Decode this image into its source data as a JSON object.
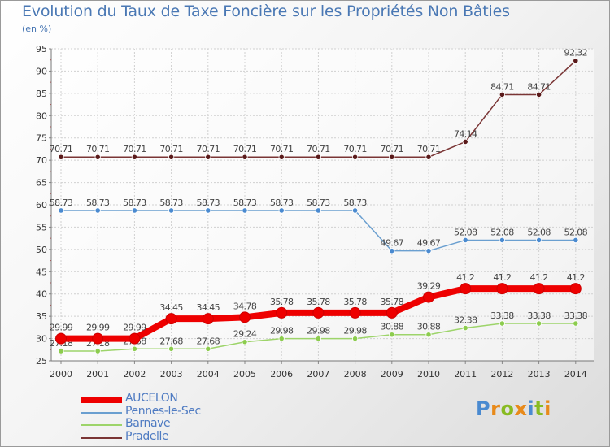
{
  "header": {
    "title": "Evolution du Taux de Taxe Foncière sur les Propriétés Non Bâties",
    "unit": "(en %)"
  },
  "chart_data": {
    "type": "line",
    "title": "Evolution du Taux de Taxe Foncière sur les Propriétés Non Bâties",
    "ylabel": "(en %)",
    "xlabel": "",
    "ylim": [
      25,
      95
    ],
    "yticks": [
      25,
      30,
      35,
      40,
      45,
      50,
      55,
      60,
      65,
      70,
      75,
      80,
      85,
      90,
      95
    ],
    "grid": true,
    "legend_position": "bottom-left",
    "categories": [
      "2000",
      "2001",
      "2002",
      "2003",
      "2004",
      "2005",
      "2006",
      "2007",
      "2008",
      "2009",
      "2010",
      "2011",
      "2012",
      "2013",
      "2014"
    ],
    "series": [
      {
        "name": "Barnave",
        "color": "#9dd46a",
        "marker_color": "#8ccc4e",
        "values": [
          27.18,
          27.18,
          27.68,
          27.68,
          27.68,
          29.24,
          29.98,
          29.98,
          29.98,
          30.88,
          30.88,
          32.38,
          33.38,
          33.38,
          33.38
        ],
        "labels": [
          "27.18",
          "27.18",
          "27.68",
          "27.68",
          "27.68",
          "29.24",
          "29.98",
          "29.98",
          "29.98",
          "30.88",
          "30.88",
          "32.38",
          "33.38",
          "33.38",
          "33.38"
        ]
      },
      {
        "name": "Pennes-le-Sec",
        "color": "#6a9fd0",
        "marker_color": "#4a8ad0",
        "values": [
          58.73,
          58.73,
          58.73,
          58.73,
          58.73,
          58.73,
          58.73,
          58.73,
          58.73,
          49.67,
          49.67,
          52.08,
          52.08,
          52.08,
          52.08
        ],
        "labels": [
          "58.73",
          "58.73",
          "58.73",
          "58.73",
          "58.73",
          "58.73",
          "58.73",
          "58.73",
          "58.73",
          "49.67",
          "49.67",
          "52.08",
          "52.08",
          "52.08",
          "52.08"
        ]
      },
      {
        "name": "Pradelle",
        "color": "#7a3535",
        "marker_color": "#5a1a1a",
        "values": [
          70.71,
          70.71,
          70.71,
          70.71,
          70.71,
          70.71,
          70.71,
          70.71,
          70.71,
          70.71,
          70.71,
          74.14,
          84.71,
          84.71,
          92.32
        ],
        "labels": [
          "70.71",
          "70.71",
          "70.71",
          "70.71",
          "70.71",
          "70.71",
          "70.71",
          "70.71",
          "70.71",
          "70.71",
          "70.71",
          "74.14",
          "84.71",
          "84.71",
          "92.32"
        ]
      },
      {
        "name": "AUCELON",
        "color": "#ee0000",
        "marker_color": "#ee0000",
        "values": [
          29.99,
          29.99,
          29.99,
          34.45,
          34.45,
          34.78,
          35.78,
          35.78,
          35.78,
          35.78,
          39.29,
          41.2,
          41.2,
          41.2,
          41.2
        ],
        "labels": [
          "29.99",
          "29.99",
          "29.99",
          "34.45",
          "34.45",
          "34.78",
          "35.78",
          "35.78",
          "35.78",
          "35.78",
          "39.29",
          "41.2",
          "41.2",
          "41.2",
          "41.2"
        ]
      }
    ]
  },
  "legend": {
    "items": [
      {
        "label": "AUCELON",
        "color": "#ee0000"
      },
      {
        "label": "Pennes-le-Sec",
        "color": "#6a9fd0"
      },
      {
        "label": "Barnave",
        "color": "#9dd46a"
      },
      {
        "label": "Pradelle",
        "color": "#7a3535"
      }
    ]
  },
  "logo": {
    "text": "Proxiti",
    "letter_colors": [
      "#4a8ad0",
      "#e88a1a",
      "#88bb22",
      "#e88a1a",
      "#4a8ad0",
      "#88bb22",
      "#e88a1a"
    ]
  }
}
